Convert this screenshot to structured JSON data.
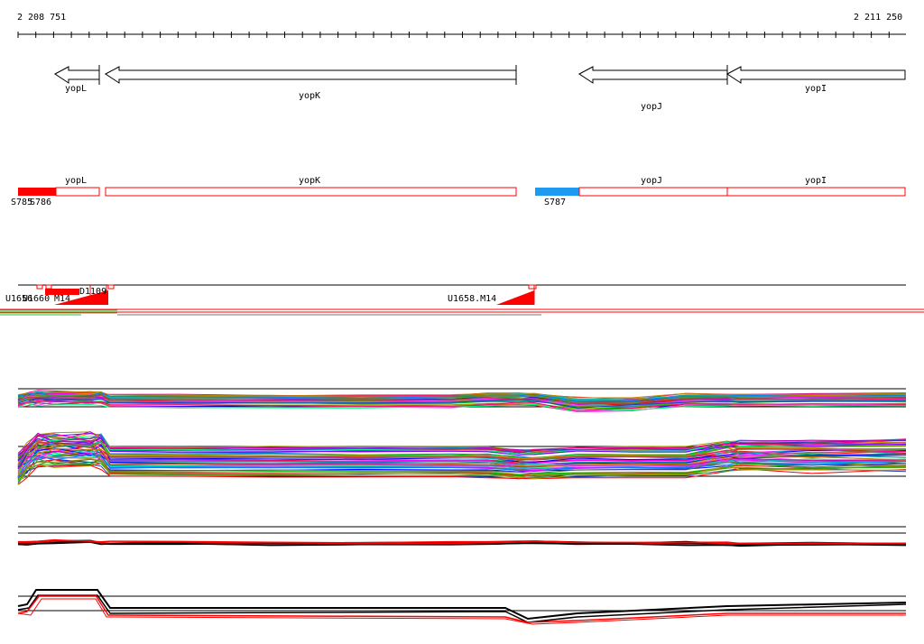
{
  "ruler": {
    "start_label": "2 208 751",
    "end_label": "2 211 250"
  },
  "genes": [
    {
      "name": "yopL",
      "id": "gene-yopL"
    },
    {
      "name": "yopK",
      "id": "gene-yopK"
    },
    {
      "name": "yopJ",
      "id": "gene-yopJ"
    },
    {
      "name": "yopI",
      "id": "gene-yopI"
    }
  ],
  "region_track": {
    "gene_labels": [
      "yopL",
      "yopK",
      "yopJ",
      "yopI"
    ],
    "segment_labels": [
      "S785",
      "S786",
      "S787"
    ],
    "colors": {
      "red": "#ff0000",
      "blue": "#1e9bf0"
    }
  },
  "probe_track": {
    "labels": [
      "U1656",
      "U1660",
      "M14",
      "D1109",
      "U1658.M14"
    ]
  }
}
